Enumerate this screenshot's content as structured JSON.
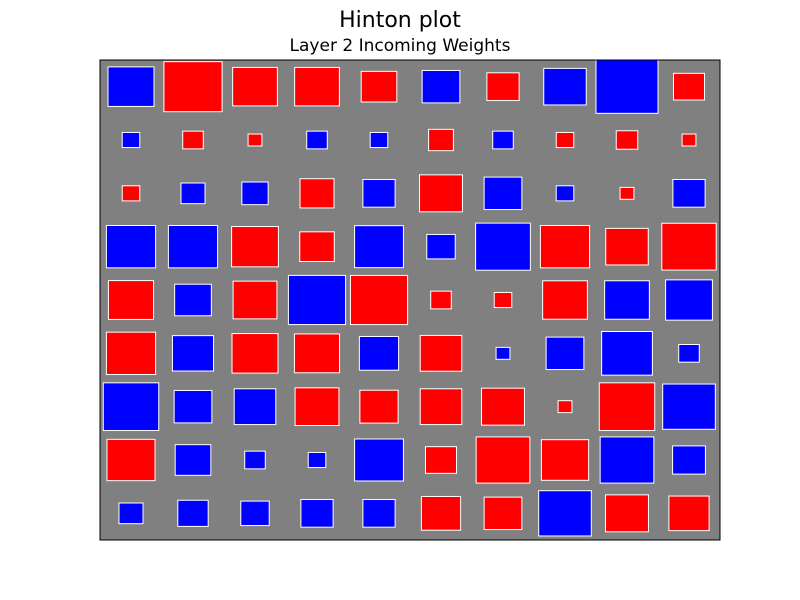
{
  "chart_data": {
    "type": "heatmap",
    "title": "Hinton plot",
    "subtitle": "Layer 2 Incoming Weights",
    "xlabel": "",
    "ylabel": "",
    "grid": false,
    "max_weight": 1.0,
    "colors": {
      "background": "#808080",
      "positive": "#0000ff",
      "negative": "#ff0000",
      "edge": "#ffffff"
    },
    "weights": [
      [
        0.55,
        -0.88,
        -0.52,
        -0.52,
        -0.33,
        0.37,
        -0.27,
        0.47,
        1.0,
        -0.25
      ],
      [
        0.08,
        -0.11,
        -0.05,
        0.11,
        0.08,
        -0.16,
        0.11,
        -0.08,
        -0.12,
        -0.05
      ],
      [
        -0.08,
        0.15,
        0.18,
        -0.3,
        0.27,
        -0.48,
        0.37,
        0.08,
        -0.05,
        0.27
      ],
      [
        0.63,
        0.63,
        -0.57,
        -0.31,
        0.62,
        0.21,
        0.78,
        -0.63,
        -0.47,
        -0.77
      ],
      [
        -0.53,
        0.35,
        -0.5,
        0.85,
        -0.85,
        -0.11,
        -0.08,
        -0.52,
        0.52,
        0.57
      ],
      [
        -0.63,
        0.44,
        -0.55,
        -0.53,
        0.4,
        -0.45,
        0.05,
        0.37,
        0.67,
        0.11
      ],
      [
        0.8,
        0.37,
        0.45,
        -0.5,
        -0.38,
        -0.45,
        -0.48,
        -0.05,
        -0.8,
        0.72
      ],
      [
        -0.6,
        0.33,
        0.11,
        0.08,
        0.62,
        -0.25,
        -0.75,
        -0.58,
        0.75,
        0.28
      ],
      [
        0.15,
        0.24,
        0.21,
        0.27,
        0.27,
        -0.4,
        -0.37,
        0.72,
        -0.48,
        -0.42
      ]
    ]
  }
}
